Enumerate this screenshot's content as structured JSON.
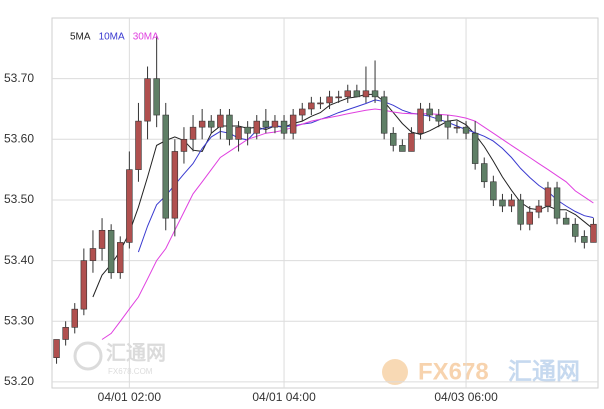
{
  "chart_data": {
    "type": "candlestick",
    "categories": [
      null,
      null,
      null,
      null,
      null,
      null,
      null,
      null,
      "04/01 02:00",
      null,
      null,
      null,
      null,
      null,
      null,
      null,
      null,
      null,
      null,
      null,
      null,
      null,
      null,
      null,
      null,
      "04/01 04:00",
      null,
      null,
      null,
      null,
      null,
      null,
      null,
      null,
      null,
      null,
      null,
      null,
      null,
      null,
      null,
      null,
      null,
      null,
      null,
      "04/03 06:00",
      null,
      null,
      null,
      null,
      null,
      null,
      null,
      null,
      null,
      null,
      null,
      null,
      null,
      null
    ],
    "open": [
      53.24,
      53.27,
      53.29,
      53.32,
      53.4,
      53.42,
      53.45,
      53.38,
      53.43,
      53.55,
      53.63,
      53.7,
      53.64,
      53.47,
      53.58,
      53.6,
      53.62,
      53.63,
      53.62,
      53.64,
      53.6,
      53.62,
      53.61,
      53.63,
      53.62,
      53.63,
      53.61,
      53.64,
      53.65,
      53.66,
      53.66,
      53.67,
      53.67,
      53.68,
      53.67,
      53.68,
      53.67,
      53.61,
      53.59,
      53.58,
      53.61,
      53.65,
      53.64,
      53.63,
      53.62,
      53.62,
      53.61,
      53.56,
      53.53,
      53.5,
      53.49,
      53.5,
      53.46,
      53.48,
      53.49,
      53.52,
      53.47,
      53.46,
      53.44,
      53.43
    ],
    "high": [
      53.27,
      53.3,
      53.33,
      53.42,
      53.45,
      53.47,
      53.46,
      53.44,
      53.58,
      53.66,
      53.72,
      53.77,
      53.66,
      53.6,
      53.62,
      53.64,
      53.65,
      53.64,
      53.65,
      53.65,
      53.63,
      53.63,
      53.64,
      53.65,
      53.64,
      53.64,
      53.65,
      53.66,
      53.67,
      53.67,
      53.68,
      53.68,
      53.69,
      53.69,
      53.72,
      53.73,
      53.68,
      53.62,
      53.6,
      53.62,
      53.66,
      53.66,
      53.65,
      53.64,
      53.63,
      53.63,
      53.63,
      53.57,
      53.54,
      53.51,
      53.51,
      53.51,
      53.49,
      53.5,
      53.53,
      53.53,
      53.48,
      53.47,
      53.45,
      53.47
    ],
    "low": [
      53.23,
      53.26,
      53.28,
      53.31,
      53.38,
      53.4,
      53.37,
      53.37,
      53.42,
      53.53,
      53.6,
      53.62,
      53.45,
      53.44,
      53.56,
      53.58,
      53.6,
      53.61,
      53.6,
      53.59,
      53.58,
      53.59,
      53.6,
      53.61,
      53.61,
      53.6,
      53.6,
      53.63,
      53.64,
      53.65,
      53.65,
      53.66,
      53.66,
      53.67,
      53.66,
      53.66,
      53.6,
      53.58,
      53.58,
      53.58,
      53.6,
      53.63,
      53.62,
      53.6,
      53.61,
      53.6,
      53.55,
      53.52,
      53.49,
      53.48,
      53.48,
      53.45,
      53.45,
      53.47,
      53.48,
      53.46,
      53.46,
      53.43,
      53.42,
      53.43
    ],
    "close": [
      53.27,
      53.29,
      53.32,
      53.4,
      53.42,
      53.45,
      53.38,
      53.43,
      53.55,
      53.63,
      53.7,
      53.64,
      53.47,
      53.58,
      53.6,
      53.62,
      53.63,
      53.62,
      53.64,
      53.6,
      53.62,
      53.61,
      53.63,
      53.62,
      53.63,
      53.61,
      53.64,
      53.65,
      53.66,
      53.66,
      53.67,
      53.67,
      53.68,
      53.67,
      53.68,
      53.67,
      53.61,
      53.59,
      53.58,
      53.61,
      53.65,
      53.64,
      53.63,
      53.62,
      53.62,
      53.61,
      53.56,
      53.53,
      53.5,
      53.49,
      53.5,
      53.46,
      53.48,
      53.49,
      53.52,
      53.47,
      53.46,
      53.44,
      53.43,
      53.46
    ],
    "up_color": "#b0504f",
    "down_color": "#5f7f66",
    "series": [
      {
        "name": "5MA",
        "color": "#222222",
        "values": [
          null,
          null,
          null,
          null,
          53.34,
          53.376,
          53.394,
          53.416,
          53.446,
          53.488,
          53.538,
          53.59,
          53.598,
          53.604,
          53.598,
          53.582,
          53.58,
          53.61,
          53.622,
          53.622,
          53.622,
          53.618,
          53.62,
          53.616,
          53.622,
          53.62,
          53.626,
          53.63,
          53.638,
          53.644,
          53.656,
          53.662,
          53.668,
          53.67,
          53.674,
          53.674,
          53.662,
          53.644,
          53.626,
          53.612,
          53.608,
          53.614,
          53.622,
          53.63,
          53.632,
          53.624,
          53.608,
          53.588,
          53.564,
          53.538,
          53.516,
          53.496,
          53.486,
          53.484,
          53.49,
          53.484,
          53.484,
          53.476,
          53.464,
          53.452
        ]
      },
      {
        "name": "10MA",
        "color": "#3a3ad0",
        "values": [
          null,
          null,
          null,
          null,
          null,
          null,
          null,
          null,
          null,
          53.414,
          53.457,
          53.492,
          53.507,
          53.525,
          53.543,
          53.56,
          53.585,
          53.604,
          53.613,
          53.61,
          53.602,
          53.599,
          53.615,
          53.619,
          53.622,
          53.621,
          53.622,
          53.625,
          53.627,
          53.633,
          53.638,
          53.644,
          53.649,
          53.654,
          53.659,
          53.665,
          53.662,
          53.656,
          53.648,
          53.643,
          53.641,
          53.638,
          53.633,
          53.628,
          53.622,
          53.616,
          53.611,
          53.605,
          53.597,
          53.585,
          53.57,
          53.552,
          53.537,
          53.524,
          53.514,
          53.5,
          53.49,
          53.481,
          53.474,
          53.471
        ]
      },
      {
        "name": "30MA",
        "color": "#e040e0",
        "values": [
          null,
          null,
          null,
          null,
          null,
          53.27,
          53.28,
          53.3,
          53.32,
          53.34,
          53.37,
          53.4,
          53.42,
          53.45,
          53.48,
          53.51,
          53.53,
          53.55,
          53.57,
          53.58,
          53.59,
          53.6,
          53.605,
          53.61,
          53.612,
          53.615,
          53.62,
          53.625,
          53.63,
          53.633,
          53.636,
          53.639,
          53.642,
          53.645,
          53.648,
          53.65,
          53.648,
          53.645,
          53.643,
          53.642,
          53.642,
          53.642,
          53.641,
          53.64,
          53.638,
          53.635,
          53.63,
          53.62,
          53.61,
          53.6,
          53.59,
          53.58,
          53.57,
          53.56,
          53.55,
          53.54,
          53.53,
          53.515,
          53.505,
          53.495
        ]
      }
    ],
    "ylim": [
      53.19,
      53.8
    ],
    "yticks": [
      {
        "value": 53.2,
        "label": "53.20"
      },
      {
        "value": 53.3,
        "label": "53.30"
      },
      {
        "value": 53.4,
        "label": "53.40"
      },
      {
        "value": 53.5,
        "label": "53.50"
      },
      {
        "value": 53.6,
        "label": "53.60"
      },
      {
        "value": 53.7,
        "label": "53.70"
      }
    ],
    "grid": true,
    "watermarks": [
      "汇通网",
      "FX678.COM",
      "FX678",
      "汇通网"
    ]
  }
}
